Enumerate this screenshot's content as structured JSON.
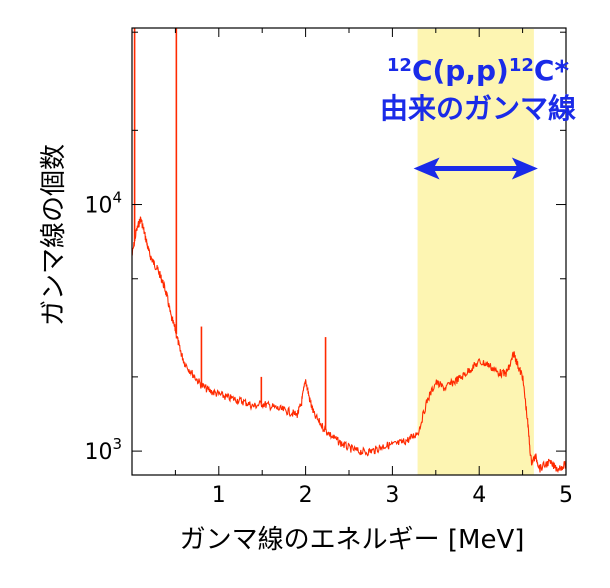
{
  "chart_data": {
    "type": "line",
    "xlabel": "ガンマ線のエネルギー [MeV]",
    "ylabel": "ガンマ線の個数",
    "xlim": [
      0,
      5
    ],
    "ylim": [
      800,
      52000
    ],
    "yscale": "log",
    "grid": false,
    "x_ticks": [
      1,
      2,
      3,
      4,
      5
    ],
    "x_tick_labels": [
      "1",
      "2",
      "3",
      "4",
      "5"
    ],
    "y_tick_labels": [
      {
        "value": 10000,
        "base": "10",
        "exp": "4"
      },
      {
        "value": 1000,
        "base": "10",
        "exp": "3"
      }
    ],
    "series": [
      {
        "color": "#ff2a00",
        "x": [
          0.0,
          0.05,
          0.1,
          0.15,
          0.2,
          0.25,
          0.3,
          0.35,
          0.4,
          0.45,
          0.5,
          0.55,
          0.6,
          0.7,
          0.8,
          0.9,
          1.0,
          1.1,
          1.2,
          1.3,
          1.4,
          1.5,
          1.6,
          1.7,
          1.8,
          1.9,
          1.95,
          2.0,
          2.05,
          2.1,
          2.2,
          2.3,
          2.4,
          2.5,
          2.6,
          2.7,
          2.8,
          2.9,
          3.0,
          3.1,
          3.2,
          3.3,
          3.4,
          3.5,
          3.6,
          3.7,
          3.8,
          3.9,
          4.0,
          4.1,
          4.2,
          4.3,
          4.35,
          4.4,
          4.45,
          4.5,
          4.55,
          4.6,
          4.65,
          4.7,
          4.8,
          4.9,
          5.0
        ],
        "y": [
          6200,
          7800,
          8800,
          7500,
          6300,
          5800,
          5400,
          4900,
          4300,
          3500,
          3100,
          2600,
          2300,
          2050,
          1850,
          1750,
          1700,
          1650,
          1620,
          1580,
          1520,
          1560,
          1520,
          1480,
          1450,
          1400,
          1550,
          1950,
          1600,
          1400,
          1250,
          1150,
          1080,
          1030,
          1000,
          990,
          1010,
          1050,
          1060,
          1080,
          1120,
          1200,
          1600,
          1900,
          1800,
          1900,
          2000,
          2150,
          2300,
          2250,
          2100,
          2050,
          2200,
          2500,
          2200,
          2000,
          1400,
          900,
          950,
          850,
          900,
          850,
          880
        ]
      }
    ],
    "peaks": [
      {
        "x": 0.03,
        "y": 52000
      },
      {
        "x": 0.511,
        "y": 52000
      },
      {
        "x": 0.8,
        "y": 3200
      },
      {
        "x": 1.49,
        "y": 2000
      },
      {
        "x": 2.23,
        "y": 2900
      }
    ],
    "highlight": {
      "x_start": 3.29,
      "x_end": 4.63,
      "color": "#fdf5b2"
    },
    "annotation": {
      "line1": {
        "mass": "12",
        "a": "C(p,p)",
        "mass2": "12",
        "b": "C*"
      },
      "line2": "由来のガンマ線",
      "color": "#1a2be8",
      "arrow": {
        "x_start": 3.29,
        "x_end": 4.63,
        "y": 14000
      }
    }
  }
}
